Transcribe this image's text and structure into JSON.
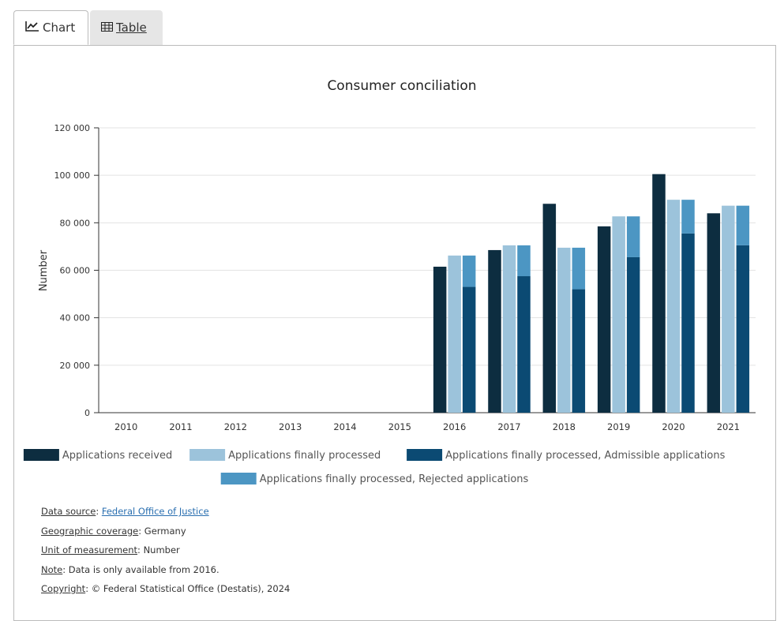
{
  "tabs": [
    {
      "label": "Chart",
      "icon": "line-chart-icon",
      "active": true
    },
    {
      "label": "Table",
      "icon": "table-icon",
      "active": false
    }
  ],
  "chart_data": {
    "type": "bar",
    "title": "Consumer conciliation",
    "xlabel": "",
    "ylabel": "Number",
    "ylim": [
      0,
      120000
    ],
    "yticks": [
      0,
      20000,
      40000,
      60000,
      80000,
      100000,
      120000
    ],
    "ytick_labels": [
      "0",
      "20 000",
      "40 000",
      "60 000",
      "80 000",
      "100 000",
      "120 000"
    ],
    "grid": true,
    "legend_position": "bottom",
    "categories": [
      "2010",
      "2011",
      "2012",
      "2013",
      "2014",
      "2015",
      "2016",
      "2017",
      "2018",
      "2019",
      "2020",
      "2021"
    ],
    "series": [
      {
        "name": "Applications received",
        "color": "#0d2d40",
        "stack": "a",
        "values": [
          null,
          null,
          null,
          null,
          null,
          null,
          61500,
          68500,
          88000,
          78500,
          100500,
          84000
        ]
      },
      {
        "name": "Applications finally processed",
        "color": "#9cc3db",
        "stack": "b",
        "values": [
          null,
          null,
          null,
          null,
          null,
          null,
          66200,
          70500,
          69500,
          82700,
          89700,
          87200
        ]
      },
      {
        "name": "Applications finally processed, Admissible applications",
        "color": "#0b4a73",
        "stack": "c",
        "values": [
          null,
          null,
          null,
          null,
          null,
          null,
          53000,
          57500,
          52000,
          65500,
          75500,
          70500
        ]
      },
      {
        "name": "Applications finally processed, Rejected applications",
        "color": "#4c96c3",
        "stack": "c",
        "values": [
          null,
          null,
          null,
          null,
          null,
          null,
          13200,
          13000,
          17500,
          17200,
          14200,
          16700
        ]
      }
    ]
  },
  "footer": {
    "source_key": "Data source",
    "source_link": "Federal Office of Justice",
    "coverage_key": "Geographic coverage",
    "coverage_value": "Germany",
    "unit_key": "Unit of measurement",
    "unit_value": "Number",
    "note_key": "Note",
    "note_value": "Data is only available from 2016.",
    "copyright_key": "Copyright",
    "copyright_value": "© Federal Statistical Office (Destatis), 2024"
  }
}
